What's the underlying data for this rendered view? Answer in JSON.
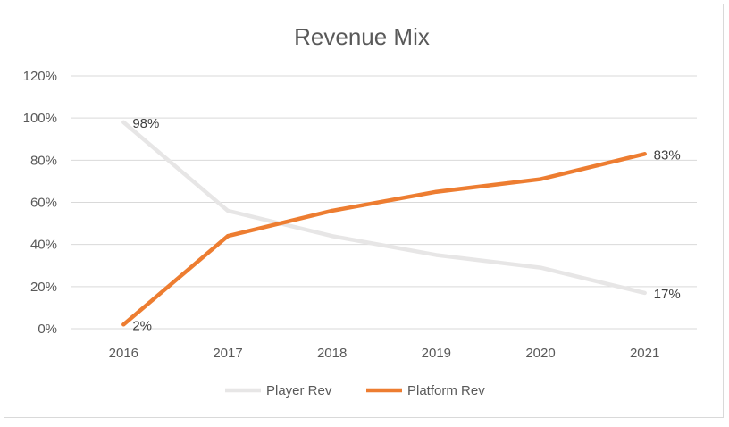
{
  "chart_data": {
    "type": "line",
    "title": "Revenue Mix",
    "categories": [
      "2016",
      "2017",
      "2018",
      "2019",
      "2020",
      "2021"
    ],
    "y_ticks": [
      "0%",
      "20%",
      "40%",
      "60%",
      "80%",
      "100%",
      "120%"
    ],
    "ylim": [
      0,
      120
    ],
    "grid": true,
    "legend_position": "bottom",
    "series": [
      {
        "name": "Player Rev",
        "values": [
          98,
          56,
          44,
          35,
          29,
          17
        ],
        "color": "#e7e6e6",
        "labels": [
          "98%",
          "",
          "",
          "",
          "",
          "17%"
        ]
      },
      {
        "name": "Platform Rev",
        "values": [
          2,
          44,
          56,
          65,
          71,
          83
        ],
        "color": "#ed7d31",
        "labels": [
          "2%",
          "",
          "",
          "",
          "",
          "83%"
        ]
      }
    ]
  }
}
